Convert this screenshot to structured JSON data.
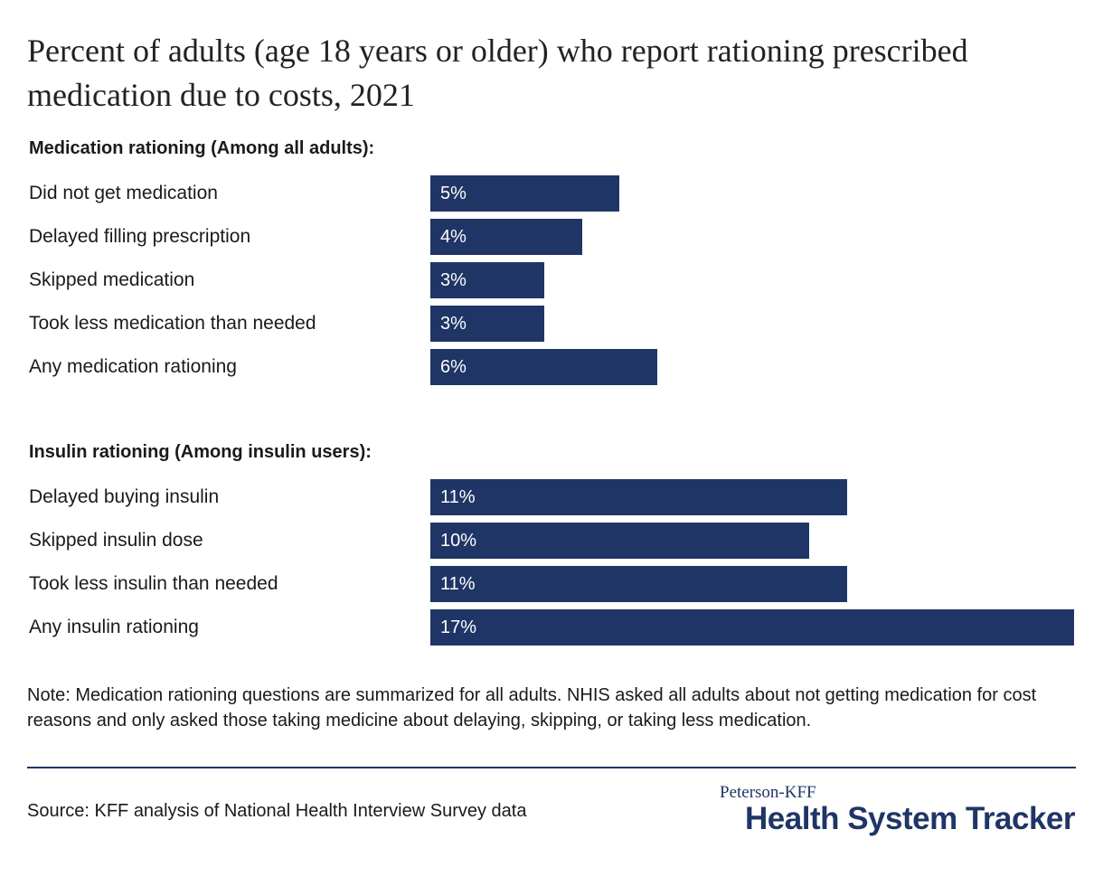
{
  "chart_data": {
    "type": "bar",
    "orientation": "horizontal",
    "title": "Percent of adults (age 18 years or older) who report rationing prescribed medication due to costs, 2021",
    "xlim": [
      0,
      17
    ],
    "grid": false,
    "bar_color": "#1f3566",
    "groups": [
      {
        "header": "Medication rationing (Among all adults):",
        "categories": [
          "Did not get medication",
          "Delayed filling prescription",
          "Skipped medication",
          "Took less medication than needed",
          "Any medication rationing"
        ],
        "values": [
          5,
          4,
          3,
          3,
          6
        ],
        "value_labels": [
          "5%",
          "4%",
          "3%",
          "3%",
          "6%"
        ]
      },
      {
        "header": "Insulin rationing (Among insulin users):",
        "categories": [
          "Delayed buying insulin",
          "Skipped insulin dose",
          "Took less insulin than needed",
          "Any insulin rationing"
        ],
        "values": [
          11,
          10,
          11,
          17
        ],
        "value_labels": [
          "11%",
          "10%",
          "11%",
          "17%"
        ]
      }
    ]
  },
  "note": "Note: Medication rationing questions are summarized for all adults. NHIS asked all adults about not getting medication for cost reasons and only asked those taking medicine about delaying, skipping, or taking less medication.",
  "source": "Source: KFF analysis of National Health Interview Survey data",
  "brand": {
    "top": "Peterson-KFF",
    "main": "Health System Tracker"
  }
}
